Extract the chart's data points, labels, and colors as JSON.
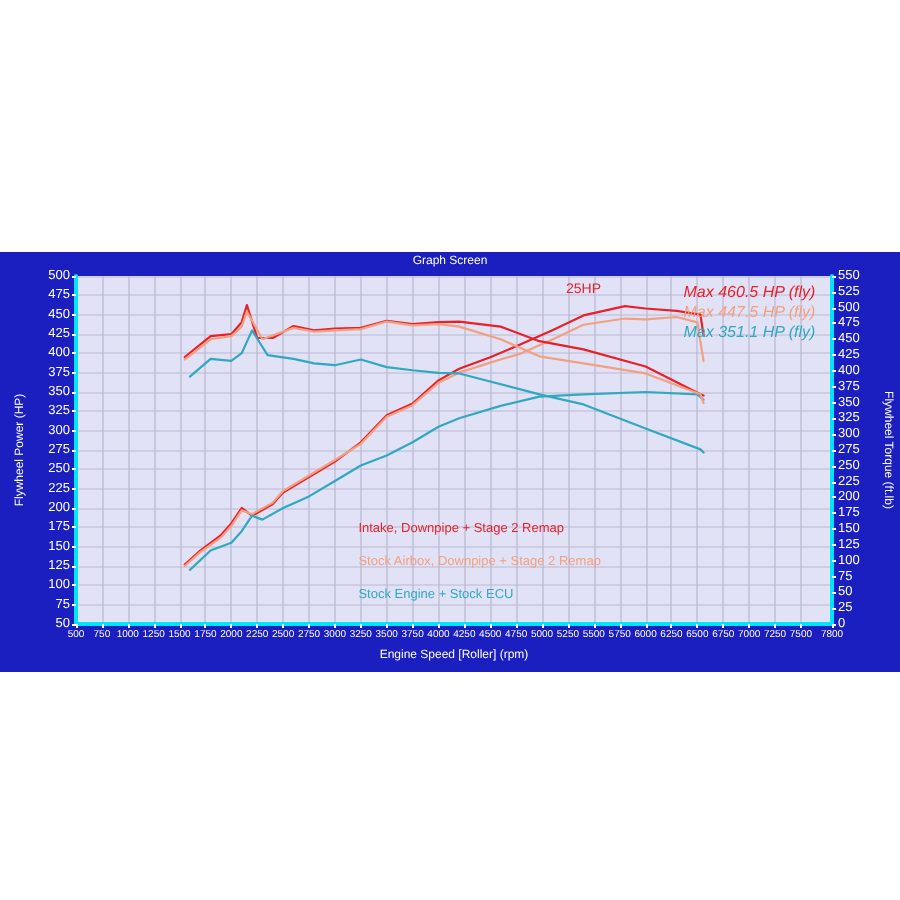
{
  "chart_data": {
    "type": "line",
    "title": "Graph Screen",
    "xlabel": "Engine Speed [Roller] (rpm)",
    "ylabel": "Flywheel Power (HP)",
    "y2label": "Flywheel Torque (ft.lb)",
    "xlim": [
      500,
      7800
    ],
    "xticks": [
      500,
      750,
      1000,
      1250,
      1500,
      1750,
      2000,
      2250,
      2500,
      2750,
      3000,
      3250,
      3500,
      3750,
      4000,
      4250,
      4500,
      4750,
      5000,
      5250,
      5500,
      5750,
      6000,
      6250,
      6500,
      6750,
      7000,
      7250,
      7500,
      7800
    ],
    "ylim": [
      50,
      500
    ],
    "yticks": [
      50,
      75,
      100,
      125,
      150,
      175,
      200,
      225,
      250,
      275,
      300,
      325,
      350,
      375,
      400,
      425,
      450,
      475,
      500
    ],
    "y2lim": [
      0,
      550
    ],
    "y2ticks": [
      0,
      25,
      50,
      75,
      100,
      125,
      150,
      175,
      200,
      225,
      250,
      275,
      300,
      325,
      350,
      375,
      400,
      425,
      450,
      475,
      500,
      525,
      550
    ],
    "grid": true,
    "legend": "bottom",
    "marker": "none",
    "line_style": "solid",
    "series": [
      {
        "name": "Intake, Downpipe + Stage 2 Remap",
        "color": "#e8202a",
        "x": [
          1550,
          1700,
          1900,
          2000,
          2100,
          2200,
          2400,
          2500,
          2750,
          3000,
          3250,
          3500,
          3750,
          4000,
          4200,
          4500,
          4800,
          5100,
          5400,
          5800,
          6000,
          6300,
          6530,
          6560
        ],
        "values": [
          127,
          145,
          165,
          180,
          200,
          190,
          205,
          220,
          240,
          260,
          285,
          320,
          335,
          365,
          380,
          395,
          412,
          430,
          449,
          461,
          458,
          455,
          450,
          423
        ]
      },
      {
        "name": "Stock Airbox, Downpipe + Stage 2 Remap",
        "color": "#f2a080",
        "x": [
          1550,
          1700,
          1900,
          2000,
          2100,
          2200,
          2400,
          2500,
          2750,
          3000,
          3250,
          3500,
          3750,
          4000,
          4200,
          4500,
          4800,
          5100,
          5400,
          5800,
          6000,
          6300,
          6500,
          6560
        ],
        "values": [
          125,
          143,
          162,
          177,
          197,
          192,
          207,
          222,
          242,
          262,
          283,
          318,
          333,
          362,
          375,
          388,
          400,
          418,
          437,
          445,
          444,
          447,
          440,
          390
        ]
      },
      {
        "name": "Stock Engine + Stock ECU",
        "color": "#30a8c0",
        "x": [
          1600,
          1800,
          2000,
          2100,
          2200,
          2300,
          2500,
          2750,
          3000,
          3250,
          3500,
          3750,
          4000,
          4200,
          4600,
          4975,
          5400,
          6000,
          6500,
          6560
        ],
        "values": [
          120,
          145,
          155,
          170,
          190,
          185,
          200,
          215,
          235,
          255,
          268,
          285,
          305,
          316,
          332,
          344,
          347,
          350,
          347,
          340
        ]
      },
      {
        "color": "#e8202a",
        "axis": "y2",
        "x": [
          1550,
          1800,
          2000,
          2100,
          2150,
          2250,
          2400,
          2600,
          2800,
          3000,
          3250,
          3500,
          3750,
          4000,
          4200,
          4600,
          4975,
          5400,
          6000,
          6530,
          6560
        ],
        "values": [
          422,
          455,
          458,
          477,
          504,
          452,
          452,
          471,
          464,
          467,
          468,
          479,
          474,
          477,
          478,
          470,
          447,
          434,
          407,
          363,
          361
        ]
      },
      {
        "color": "#f2a080",
        "axis": "y2",
        "x": [
          1550,
          1800,
          2000,
          2100,
          2150,
          2300,
          2600,
          2800,
          3000,
          3250,
          3500,
          3750,
          4000,
          4200,
          4600,
          4975,
          5400,
          6000,
          6530,
          6560
        ],
        "values": [
          418,
          450,
          455,
          470,
          494,
          450,
          468,
          462,
          464,
          466,
          478,
          472,
          474,
          470,
          450,
          423,
          412,
          396,
          363,
          349
        ]
      },
      {
        "color": "#30a8c0",
        "axis": "y2",
        "x": [
          1600,
          1800,
          2000,
          2100,
          2200,
          2350,
          2600,
          2800,
          3000,
          3250,
          3500,
          3750,
          4000,
          4200,
          4975,
          5400,
          6000,
          6530,
          6560
        ],
        "values": [
          391,
          419,
          416,
          428,
          464,
          425,
          419,
          412,
          409,
          418,
          406,
          401,
          397,
          396,
          363,
          347,
          309,
          276,
          271
        ]
      }
    ],
    "annotations": [
      "Max 460.5 HP (fly)",
      "Max 447.5 HP (fly)",
      "Max 351.1 HP (fly)",
      {
        "text": "25HP",
        "x": 5400,
        "y": 455
      }
    ]
  }
}
